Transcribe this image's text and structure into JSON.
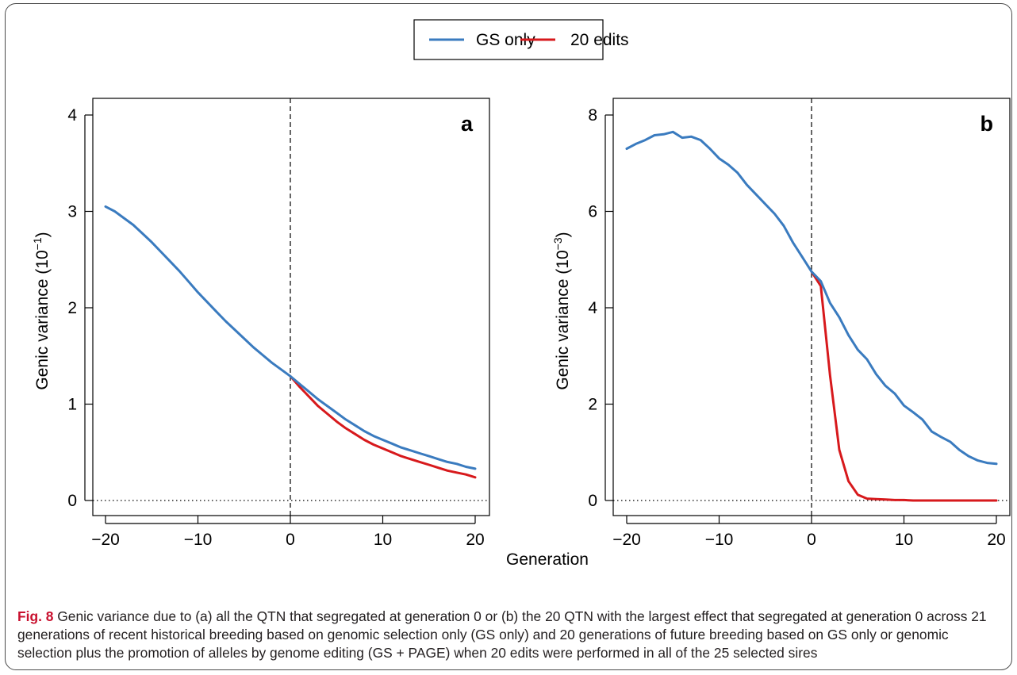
{
  "legend": {
    "items": [
      {
        "label": "GS only",
        "color": "#3a7bbf"
      },
      {
        "label": "20 edits",
        "color": "#d7191c"
      }
    ]
  },
  "xlabel": "Generation",
  "caption": {
    "label": "Fig. 8",
    "text": " Genic variance due to (a) all the QTN that segregated at generation 0 or (b) the 20 QTN with the largest effect that segregated at generation 0 across 21 generations of recent historical breeding based on genomic selection only (GS only) and 20 generations of future breeding based on GS only or genomic selection plus the promotion of alleles by genome editing (GS + PAGE) when 20 edits were performed in all of the 25 selected sires"
  },
  "chart_data": [
    {
      "type": "line",
      "panel_label": "a",
      "ylabel": "Genic variance (10",
      "ylabel_exp": "−1",
      "xlim": [
        -20,
        20
      ],
      "ylim": [
        0,
        4
      ],
      "xticks": [
        -20,
        -10,
        0,
        10,
        20
      ],
      "xtick_labels": [
        "−20",
        "−10",
        "0",
        "10",
        "20"
      ],
      "yticks": [
        0,
        1,
        2,
        3,
        4
      ],
      "ytick_labels": [
        "0",
        "1",
        "2",
        "3",
        "4"
      ],
      "vline_x": 0,
      "hline_y": 0,
      "series": [
        {
          "name": "GS only",
          "color": "#3a7bbf",
          "x": [
            -20,
            -19,
            -18,
            -17,
            -16,
            -15,
            -14,
            -13,
            -12,
            -11,
            -10,
            -9,
            -8,
            -7,
            -6,
            -5,
            -4,
            -3,
            -2,
            -1,
            0,
            1,
            2,
            3,
            4,
            5,
            6,
            7,
            8,
            9,
            10,
            11,
            12,
            13,
            14,
            15,
            16,
            17,
            18,
            19,
            20
          ],
          "y": [
            3.05,
            3.0,
            2.93,
            2.86,
            2.77,
            2.68,
            2.58,
            2.48,
            2.38,
            2.27,
            2.16,
            2.06,
            1.96,
            1.86,
            1.77,
            1.68,
            1.59,
            1.51,
            1.43,
            1.36,
            1.29,
            1.21,
            1.13,
            1.05,
            0.98,
            0.91,
            0.84,
            0.78,
            0.72,
            0.67,
            0.63,
            0.59,
            0.55,
            0.52,
            0.49,
            0.46,
            0.43,
            0.4,
            0.38,
            0.35,
            0.33
          ]
        },
        {
          "name": "20 edits",
          "color": "#d7191c",
          "x": [
            0,
            1,
            2,
            3,
            4,
            5,
            6,
            7,
            8,
            9,
            10,
            11,
            12,
            13,
            14,
            15,
            16,
            17,
            18,
            19,
            20
          ],
          "y": [
            1.29,
            1.18,
            1.08,
            0.98,
            0.9,
            0.82,
            0.75,
            0.69,
            0.63,
            0.58,
            0.54,
            0.5,
            0.46,
            0.43,
            0.4,
            0.37,
            0.34,
            0.31,
            0.29,
            0.27,
            0.24
          ]
        }
      ]
    },
    {
      "type": "line",
      "panel_label": "b",
      "ylabel": "Genic variance (10",
      "ylabel_exp": "−3",
      "xlim": [
        -20,
        20
      ],
      "ylim": [
        0,
        8
      ],
      "xticks": [
        -20,
        -10,
        0,
        10,
        20
      ],
      "xtick_labels": [
        "−20",
        "−10",
        "0",
        "10",
        "20"
      ],
      "yticks": [
        0,
        2,
        4,
        6,
        8
      ],
      "ytick_labels": [
        "0",
        "2",
        "4",
        "6",
        "8"
      ],
      "vline_x": 0,
      "hline_y": 0,
      "series": [
        {
          "name": "GS only",
          "color": "#3a7bbf",
          "x": [
            -20,
            -19,
            -18,
            -17,
            -16,
            -15,
            -14,
            -13,
            -12,
            -11,
            -10,
            -9,
            -8,
            -7,
            -6,
            -5,
            -4,
            -3,
            -2,
            -1,
            0,
            1,
            2,
            3,
            4,
            5,
            6,
            7,
            8,
            9,
            10,
            11,
            12,
            13,
            14,
            15,
            16,
            17,
            18,
            19,
            20
          ],
          "y": [
            7.3,
            7.4,
            7.48,
            7.58,
            7.6,
            7.65,
            7.53,
            7.55,
            7.48,
            7.3,
            7.1,
            6.97,
            6.8,
            6.55,
            6.35,
            6.15,
            5.95,
            5.7,
            5.35,
            5.05,
            4.75,
            4.55,
            4.1,
            3.8,
            3.43,
            3.13,
            2.93,
            2.62,
            2.38,
            2.22,
            1.97,
            1.83,
            1.68,
            1.43,
            1.32,
            1.22,
            1.05,
            0.92,
            0.83,
            0.78,
            0.76
          ]
        },
        {
          "name": "20 edits",
          "color": "#d7191c",
          "x": [
            0,
            1,
            2,
            3,
            4,
            5,
            6,
            7,
            8,
            9,
            10,
            11,
            12,
            13,
            14,
            15,
            16,
            17,
            18,
            19,
            20
          ],
          "y": [
            4.75,
            4.45,
            2.6,
            1.05,
            0.4,
            0.12,
            0.04,
            0.03,
            0.02,
            0.01,
            0.01,
            0.0,
            0.0,
            0.0,
            0.0,
            0.0,
            0.0,
            0.0,
            0.0,
            0.0,
            0.0
          ]
        }
      ]
    }
  ]
}
